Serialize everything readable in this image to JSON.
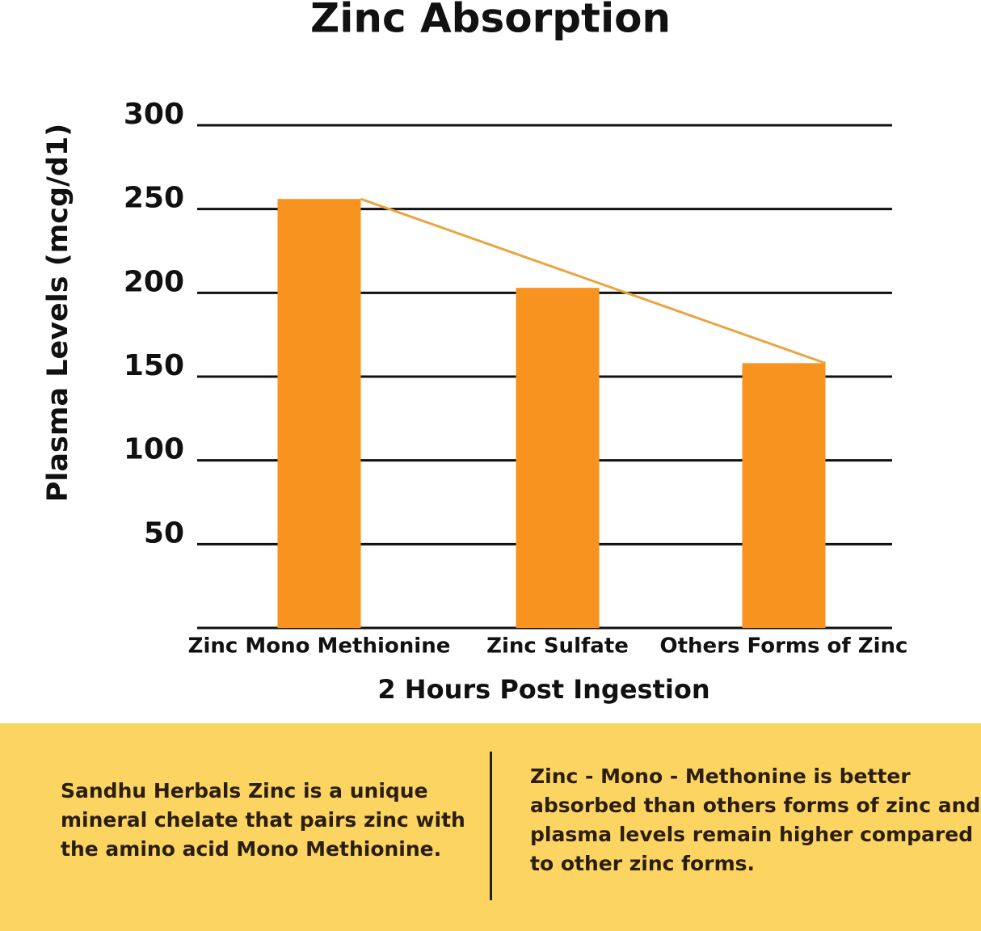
{
  "chart_data": {
    "type": "bar",
    "title": "Zinc Absorption",
    "y_label": "Plasma Levels (mcg/d1)",
    "x_label": "2 Hours Post Ingestion",
    "categories": [
      "Zinc Mono Methionine",
      "Zinc Sulfate",
      "Others Forms of Zinc"
    ],
    "values": [
      256,
      203,
      158
    ],
    "color": "#f7931e",
    "trend_line_color": "#e8a540",
    "ylim": [
      0,
      300
    ],
    "yticks": [
      50,
      100,
      150,
      200,
      250,
      300
    ],
    "grid": true
  },
  "footer": {
    "left": [
      "Sandhu Herbals Zinc is a unique",
      "mineral chelate that pairs zinc with",
      "the amino acid Mono Methionine."
    ],
    "right": [
      "Zinc - Mono - Methonine is better",
      "absorbed than others forms of zinc and",
      "plasma levels remain higher compared",
      "to other zinc forms."
    ]
  }
}
